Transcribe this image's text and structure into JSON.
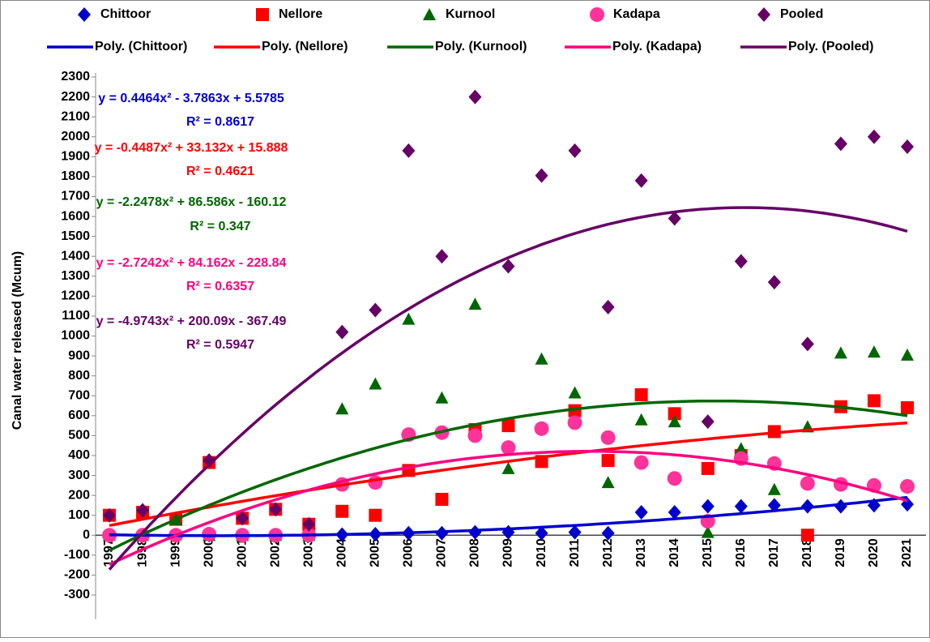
{
  "chart_data": {
    "type": "scatter",
    "ylabel": "Canal water released (Mcum)",
    "categories": [
      "1997",
      "1998",
      "1999",
      "2000",
      "2001",
      "2002",
      "2003",
      "2004",
      "2005",
      "2006",
      "2007",
      "2008",
      "2009",
      "2010",
      "2011",
      "2012",
      "2013",
      "2014",
      "2015",
      "2016",
      "2017",
      "2018",
      "2019",
      "2020",
      "2021"
    ],
    "ylim": [
      -300,
      2300
    ],
    "yticks": [
      -300,
      -200,
      -100,
      0,
      100,
      200,
      300,
      400,
      500,
      600,
      700,
      800,
      900,
      1000,
      1100,
      1200,
      1300,
      1400,
      1500,
      1600,
      1700,
      1800,
      1900,
      2000,
      2100,
      2200,
      2300
    ],
    "series": [
      {
        "name": "Chittoor",
        "color": "#0000cc",
        "marker": "diamond",
        "values": [
          0,
          0,
          0,
          0,
          0,
          0,
          0,
          3,
          5,
          10,
          10,
          15,
          15,
          10,
          15,
          10,
          115,
          115,
          145,
          145,
          150,
          145,
          145,
          150,
          155
        ],
        "trendline": {
          "name": "Poly. (Chittoor)",
          "color": "#0000cc",
          "coefficients": [
            0.4464,
            -3.7863,
            5.5785
          ],
          "equation": "y = 0.4464x² - 3.7863x + 5.5785",
          "r2": "R² = 0.8617"
        }
      },
      {
        "name": "Nellore",
        "color": "#ff0000",
        "marker": "square",
        "values": [
          100,
          115,
          80,
          365,
          85,
          130,
          55,
          120,
          100,
          325,
          180,
          530,
          550,
          370,
          625,
          375,
          705,
          610,
          335,
          400,
          520,
          0,
          645,
          675,
          640
        ],
        "trendline": {
          "name": "Poly. (Nellore)",
          "color": "#ff0000",
          "coefficients": [
            -0.4487,
            33.132,
            15.888
          ],
          "equation": "y = -0.4487x² + 33.132x + 15.888",
          "r2": "R² = 0.4621"
        }
      },
      {
        "name": "Kurnool",
        "color": "#006600",
        "marker": "triangle",
        "values": [
          0,
          0,
          80,
          0,
          0,
          0,
          0,
          635,
          760,
          1085,
          690,
          1160,
          335,
          885,
          715,
          265,
          580,
          570,
          15,
          435,
          230,
          545,
          915,
          920,
          905
        ],
        "trendline": {
          "name": "Poly. (Kurnool)",
          "color": "#006600",
          "coefficients": [
            -2.2478,
            86.586,
            -160.12
          ],
          "equation": "y = -2.2478x² + 86.586x - 160.12",
          "r2": "R² = 0.347"
        }
      },
      {
        "name": "Kadapa",
        "color": "#ff3399",
        "marker": "circle",
        "values": [
          0,
          0,
          0,
          5,
          0,
          0,
          0,
          255,
          265,
          505,
          515,
          500,
          440,
          535,
          565,
          490,
          365,
          285,
          70,
          385,
          360,
          260,
          255,
          250,
          245
        ],
        "trendline": {
          "name": "Poly. (Kadapa)",
          "color": "#ff0080",
          "coefficients": [
            -2.7242,
            84.162,
            -228.84
          ],
          "equation": "y = -2.7242x² + 84.162x - 228.84",
          "r2": "R² = 0.6357"
        }
      },
      {
        "name": "Pooled",
        "color": "#660066",
        "marker": "diamond",
        "values": [
          100,
          125,
          null,
          375,
          85,
          130,
          55,
          1020,
          1130,
          1930,
          1400,
          2200,
          1350,
          1805,
          1930,
          1145,
          1780,
          1590,
          570,
          1375,
          1270,
          960,
          1965,
          2000,
          1950
        ],
        "trendline": {
          "name": "Poly. (Pooled)",
          "color": "#660066",
          "coefficients": [
            -4.9743,
            200.09,
            -367.49
          ],
          "equation": "y = -4.9743x² + 200.09x - 367.49",
          "r2": "R² = 0.5947"
        }
      }
    ]
  }
}
